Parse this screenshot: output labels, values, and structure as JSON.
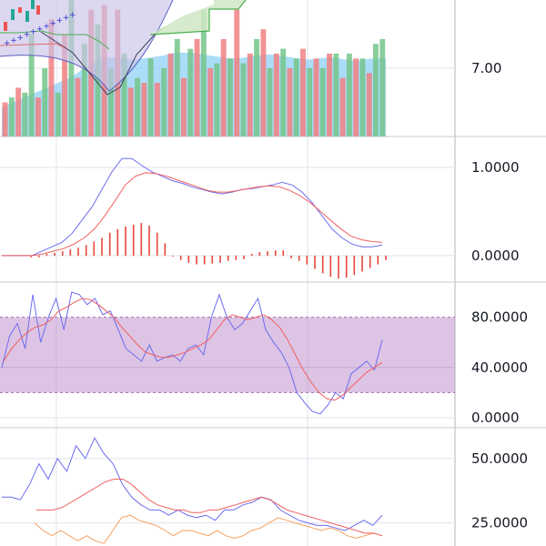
{
  "colors": {
    "background": "#ffffff",
    "grid": "#e0e3eb",
    "candle_up": "#26a69a",
    "candle_down": "#ef5350",
    "vol_up": "#74c48a",
    "vol_down": "#f08080",
    "vol_ma_fill": "#8fd0f5",
    "cloud_fill": "#cfe8c4",
    "cloud_line": "#4caf50",
    "bb_fill": "#c9c3e8",
    "bb_line": "#5b5fc7",
    "sar": "#2f2fd0",
    "macd_line": "#6c6cf0",
    "signal_line": "#f06060",
    "hist": "#e8463a",
    "stoch_k": "#6c6cf0",
    "stoch_d": "#f06060",
    "stoch_band": "#b47cc4",
    "dmi_plus": "#6c6cf0",
    "dmi_minus": "#f5a060",
    "adx": "#f06060"
  },
  "chart_data": [
    {
      "type": "bar",
      "pane": "volume",
      "title": "",
      "y_axis_labels": [
        "7.00"
      ],
      "y_label_value": 7.0,
      "ylim": [
        0,
        14
      ],
      "values": [
        3.5,
        4,
        5,
        4.5,
        10.5,
        4,
        7,
        12,
        4.5,
        10.5,
        14.5,
        6,
        9.5,
        13,
        11.5,
        13.5,
        7,
        13,
        8.5,
        5,
        6,
        5.5,
        8,
        5.5,
        7,
        8.5,
        10,
        6,
        9,
        10,
        13,
        7,
        7.5,
        10,
        8,
        13,
        7.5,
        8.5,
        10,
        11,
        7,
        8.5,
        9,
        7,
        8,
        9,
        7,
        8,
        7,
        8.5,
        8.5,
        6,
        8.5,
        8,
        8,
        6.5,
        9.5,
        10
      ],
      "directions": [
        "down",
        "up",
        "down",
        "up",
        "up",
        "down",
        "up",
        "down",
        "up",
        "down",
        "up",
        "down",
        "up",
        "down",
        "up",
        "down",
        "up",
        "down",
        "up",
        "down",
        "up",
        "down",
        "up",
        "down",
        "up",
        "down",
        "up",
        "down",
        "up",
        "down",
        "up",
        "down",
        "up",
        "down",
        "up",
        "down",
        "up",
        "down",
        "up",
        "down",
        "up",
        "down",
        "up",
        "down",
        "up",
        "down",
        "up",
        "down",
        "up",
        "down",
        "up",
        "down",
        "up",
        "down",
        "up",
        "down",
        "up",
        "up"
      ],
      "volume_ma": [
        3,
        3.3,
        3.6,
        3.9,
        4.2,
        4.5,
        4.8,
        5.1,
        5.4,
        5.7,
        6.0,
        6.4,
        6.9,
        7.3,
        7.7,
        8.0,
        8.1,
        8.1,
        8.0,
        7.9,
        7.9,
        8.0,
        8.1,
        8.2,
        8.3,
        8.5,
        8.6,
        8.6,
        8.6,
        8.5,
        8.4,
        8.3,
        8.2,
        8.1,
        8.0,
        8.0,
        8.1,
        8.2,
        8.3,
        8.4,
        8.4,
        8.3,
        8.2,
        8.1,
        8.0,
        7.9,
        7.9,
        8.0,
        8.1,
        8.1,
        8.0,
        7.9,
        7.8,
        7.8,
        7.9,
        8.0,
        8.0,
        8.0
      ]
    },
    {
      "type": "line",
      "pane": "macd",
      "title": "",
      "y_axis_labels": [
        "1.0000",
        "0.0000"
      ],
      "y_label_values": [
        1.0,
        0.0
      ],
      "ylim": [
        -0.3,
        1.35
      ],
      "series": [
        {
          "values": [
            0,
            0,
            0,
            0,
            0.05,
            0.1,
            0.15,
            0.25,
            0.4,
            0.55,
            0.75,
            0.95,
            1.1,
            1.1,
            1.02,
            0.95,
            0.9,
            0.85,
            0.82,
            0.78,
            0.75,
            0.72,
            0.7,
            0.72,
            0.75,
            0.76,
            0.78,
            0.8,
            0.83,
            0.8,
            0.72,
            0.6,
            0.45,
            0.3,
            0.2,
            0.13,
            0.1,
            0.1,
            0.12
          ]
        },
        {
          "values": [
            0,
            0,
            0,
            0,
            0.02,
            0.05,
            0.08,
            0.13,
            0.2,
            0.3,
            0.45,
            0.62,
            0.8,
            0.9,
            0.94,
            0.93,
            0.9,
            0.86,
            0.82,
            0.78,
            0.74,
            0.72,
            0.72,
            0.74,
            0.76,
            0.78,
            0.79,
            0.78,
            0.74,
            0.68,
            0.6,
            0.5,
            0.4,
            0.3,
            0.22,
            0.18,
            0.16,
            0.15
          ]
        }
      ],
      "histogram": [
        -0.02,
        -0.02,
        0.02,
        0.03,
        0.05,
        0.07,
        0.09,
        0.12,
        0.16,
        0.2,
        0.26,
        0.3,
        0.33,
        0.35,
        0.37,
        0.34,
        0.26,
        0.14,
        -0.01,
        -0.05,
        -0.08,
        -0.1,
        -0.1,
        -0.09,
        -0.08,
        -0.06,
        -0.05,
        -0.04,
        0.02,
        0.04,
        0.05,
        0.06,
        0.06,
        -0.03,
        -0.06,
        -0.1,
        -0.15,
        -0.2,
        -0.24,
        -0.26,
        -0.25,
        -0.22,
        -0.18,
        -0.14,
        -0.1,
        -0.05
      ]
    },
    {
      "type": "line",
      "pane": "stochastic",
      "title": "",
      "y_axis_labels": [
        "80.0000",
        "40.0000",
        "0.0000"
      ],
      "y_label_values": [
        80,
        40,
        0
      ],
      "ylim": [
        -8,
        108
      ],
      "band": [
        20,
        80
      ],
      "series": [
        {
          "values": [
            40,
            65,
            75,
            55,
            98,
            60,
            80,
            95,
            70,
            100,
            98,
            90,
            95,
            82,
            85,
            70,
            55,
            50,
            45,
            58,
            45,
            48,
            50,
            45,
            55,
            58,
            50,
            80,
            98,
            80,
            70,
            75,
            85,
            95,
            70,
            60,
            52,
            40,
            20,
            12,
            5,
            3,
            10,
            20,
            15,
            35,
            40,
            45,
            38,
            62
          ]
        },
        {
          "values": [
            45,
            55,
            62,
            68,
            72,
            74,
            78,
            85,
            88,
            92,
            95,
            94,
            90,
            85,
            80,
            72,
            65,
            58,
            52,
            50,
            48,
            48,
            50,
            52,
            55,
            58,
            62,
            70,
            78,
            82,
            80,
            78,
            80,
            82,
            78,
            72,
            62,
            50,
            38,
            28,
            20,
            15,
            14,
            18,
            24,
            30,
            36,
            40,
            44
          ]
        }
      ]
    },
    {
      "type": "line",
      "pane": "dmi",
      "title": "",
      "y_axis_labels": [
        "50.0000",
        "25.0000"
      ],
      "y_label_values": [
        50,
        25
      ],
      "ylim": [
        16,
        62
      ],
      "series": [
        {
          "values": [
            35,
            35,
            34,
            40,
            48,
            42,
            50,
            45,
            55,
            50,
            58,
            52,
            48,
            40,
            35,
            32,
            30,
            30,
            28,
            30,
            28,
            27,
            28,
            26,
            30,
            30,
            32,
            33,
            35,
            34,
            30,
            28,
            26,
            25,
            24,
            24,
            23,
            22,
            24,
            26,
            24,
            28
          ]
        },
        {
          "values": [
            25,
            22,
            20,
            22,
            20,
            18,
            20,
            18,
            17,
            22,
            27,
            28,
            26,
            25,
            24,
            22,
            20,
            22,
            22,
            21,
            20,
            22,
            20,
            19,
            20,
            22,
            23,
            25,
            27,
            26,
            25,
            24,
            23,
            22,
            23,
            22,
            20,
            19,
            20,
            21,
            20
          ]
        },
        {
          "values": [
            30,
            30,
            30,
            31,
            33,
            35,
            37,
            39,
            41,
            42,
            42,
            40,
            37,
            34,
            32,
            31,
            30,
            30,
            29,
            29,
            30,
            30,
            31,
            32,
            33,
            34,
            35,
            34,
            32,
            30,
            29,
            28,
            27,
            26,
            25,
            24,
            23,
            22,
            21,
            21,
            20
          ]
        }
      ]
    },
    {
      "type": "line",
      "pane": "price-overlay",
      "title": "",
      "series": [
        {
          "values": [
            4,
            5,
            6,
            7,
            8,
            9,
            10,
            11,
            12,
            13,
            14
          ]
        },
        {
          "values": [
            2,
            2,
            3,
            4,
            5,
            6,
            7,
            8,
            9,
            10,
            11
          ]
        }
      ]
    }
  ]
}
